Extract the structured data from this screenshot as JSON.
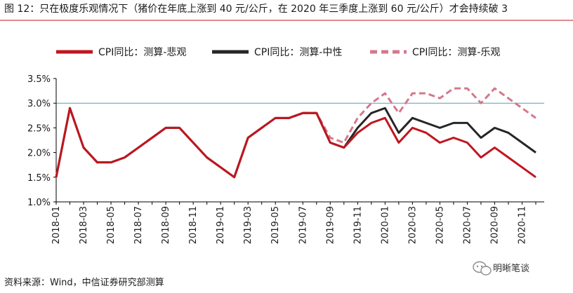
{
  "title": "图 12：只在极度乐观情况下（猪价在年底上涨到 40 元/公斤，在 2020 年三季度上涨到 60 元/公斤）才会持续破 3",
  "source": "资料来源：Wind，中信证券研究部测算",
  "watermark": "明晰笔谈",
  "colors": {
    "pessimistic": "#c0161f",
    "neutral": "#262626",
    "optimistic": "#d4788a",
    "refline": "#4fa4b5",
    "axis": "#000000"
  },
  "chart_data": {
    "type": "line",
    "x": [
      "2018-01",
      "2018-02",
      "2018-03",
      "2018-04",
      "2018-05",
      "2018-06",
      "2018-07",
      "2018-08",
      "2018-09",
      "2018-10",
      "2018-11",
      "2018-12",
      "2019-01",
      "2019-02",
      "2019-03",
      "2019-04",
      "2019-05",
      "2019-06",
      "2019-07",
      "2019-08",
      "2019-09",
      "2019-10",
      "2019-11",
      "2019-12",
      "2020-01",
      "2020-02",
      "2020-03",
      "2020-04",
      "2020-05",
      "2020-06",
      "2020-07",
      "2020-08",
      "2020-09",
      "2020-10",
      "2020-11",
      "2020-12"
    ],
    "x_tick_labels": [
      "2018-01",
      "2018-03",
      "2018-05",
      "2018-07",
      "2018-09",
      "2018-11",
      "2019-01",
      "2019-03",
      "2019-05",
      "2019-07",
      "2019-09",
      "2019-11",
      "2020-01",
      "2020-03",
      "2020-05",
      "2020-07",
      "2020-09",
      "2020-11"
    ],
    "y_tick_labels": [
      "1.0%",
      "1.5%",
      "2.0%",
      "2.5%",
      "3.0%",
      "3.5%"
    ],
    "ylim": [
      1.0,
      3.5
    ],
    "reference_line": 3.0,
    "legend_position": "top",
    "series": [
      {
        "name": "CPI同比：测算-悲观",
        "color_key": "pessimistic",
        "style": "solid",
        "values": [
          1.5,
          2.9,
          2.1,
          1.8,
          1.8,
          1.9,
          2.1,
          2.3,
          2.5,
          2.5,
          2.2,
          1.9,
          1.7,
          1.5,
          2.3,
          2.5,
          2.7,
          2.7,
          2.8,
          2.8,
          2.2,
          2.1,
          2.4,
          2.6,
          2.7,
          2.2,
          2.5,
          2.4,
          2.2,
          2.3,
          2.2,
          1.9,
          2.1,
          1.9,
          1.7,
          1.5
        ]
      },
      {
        "name": "CPI同比：测算-中性",
        "color_key": "neutral",
        "style": "solid",
        "values": [
          1.5,
          2.9,
          2.1,
          1.8,
          1.8,
          1.9,
          2.1,
          2.3,
          2.5,
          2.5,
          2.2,
          1.9,
          1.7,
          1.5,
          2.3,
          2.5,
          2.7,
          2.7,
          2.8,
          2.8,
          2.2,
          2.1,
          2.5,
          2.8,
          2.9,
          2.4,
          2.7,
          2.6,
          2.5,
          2.6,
          2.6,
          2.3,
          2.5,
          2.4,
          2.2,
          2.0
        ]
      },
      {
        "name": "CPI同比：测算-乐观",
        "color_key": "optimistic",
        "style": "dashed",
        "values": [
          1.5,
          2.9,
          2.1,
          1.8,
          1.8,
          1.9,
          2.1,
          2.3,
          2.5,
          2.5,
          2.2,
          1.9,
          1.7,
          1.5,
          2.3,
          2.5,
          2.7,
          2.7,
          2.8,
          2.8,
          2.3,
          2.2,
          2.7,
          3.0,
          3.2,
          2.8,
          3.2,
          3.2,
          3.1,
          3.3,
          3.3,
          3.0,
          3.3,
          3.1,
          2.9,
          2.7
        ]
      }
    ]
  }
}
